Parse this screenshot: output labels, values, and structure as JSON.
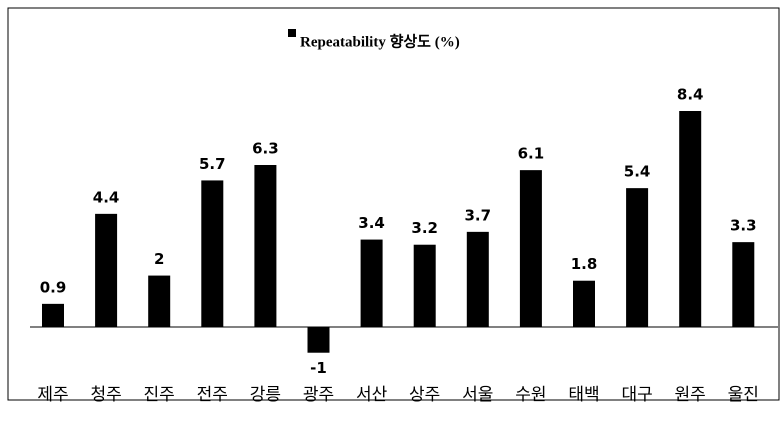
{
  "chart_data": {
    "type": "bar",
    "categories": [
      "제주",
      "청주",
      "진주",
      "전주",
      "강릉",
      "광주",
      "서산",
      "상주",
      "서울",
      "수원",
      "태백",
      "대구",
      "원주",
      "울진"
    ],
    "series": [
      {
        "name": "Repeatability 향상도 (%)",
        "color": "#000000",
        "values": [
          0.9,
          4.4,
          2,
          5.7,
          6.3,
          -1,
          3.4,
          3.2,
          3.7,
          6.1,
          1.8,
          5.4,
          8.4,
          3.3
        ]
      }
    ],
    "legend": "top"
  }
}
